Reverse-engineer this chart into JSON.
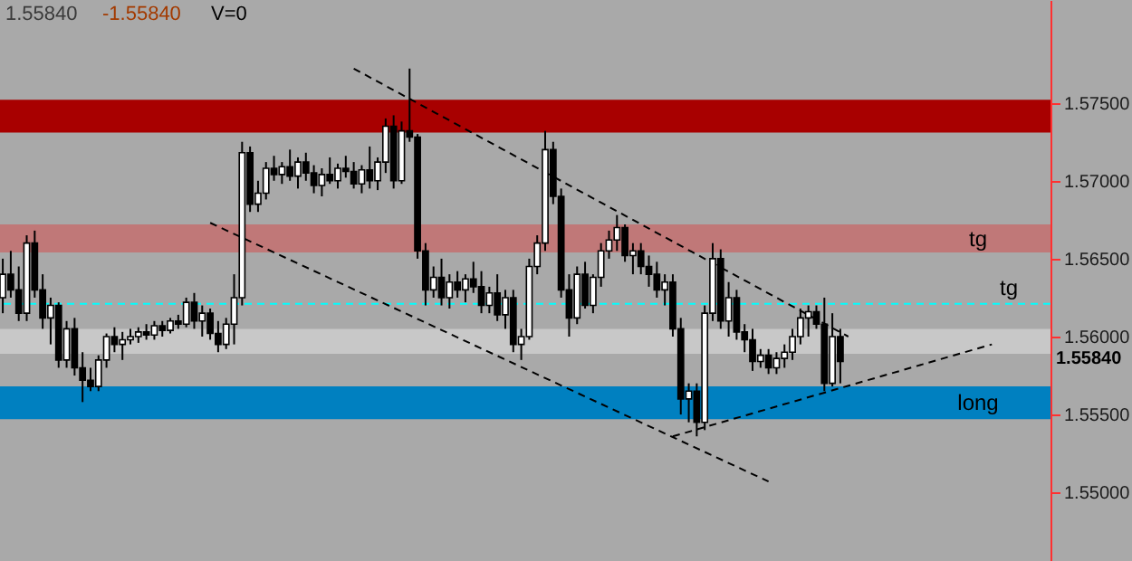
{
  "chart_data": {
    "type": "candlestick",
    "categories": [
      null,
      null,
      null,
      null,
      null,
      null,
      null,
      null,
      null,
      null,
      null,
      null,
      null,
      null,
      null,
      null,
      null,
      null,
      null,
      null,
      null,
      null,
      null,
      null,
      null,
      null,
      null,
      null,
      null,
      null,
      null,
      null,
      null,
      null,
      null,
      null,
      null,
      null,
      null,
      null,
      null,
      null,
      null,
      null,
      null,
      null,
      null,
      null,
      null,
      null,
      null,
      null,
      null,
      null,
      null,
      null,
      null,
      null,
      null,
      null,
      null,
      null,
      null,
      null,
      null,
      null,
      null,
      null,
      null,
      null,
      null,
      null,
      null,
      null,
      null,
      null,
      null,
      null,
      null,
      null,
      null,
      null,
      null,
      null,
      null,
      null,
      null,
      null,
      null,
      null,
      null,
      null,
      null,
      null,
      null,
      null,
      null,
      null,
      null,
      null,
      null,
      null,
      null,
      null,
      null,
      null,
      null,
      null,
      null,
      null,
      null,
      null,
      null,
      null,
      null,
      null,
      null,
      null,
      null,
      null,
      null,
      null,
      null,
      null,
      null,
      null,
      null,
      null,
      null,
      null,
      null,
      null
    ],
    "ohlc": [
      [
        1.5625,
        1.565,
        1.5615,
        1.564
      ],
      [
        1.564,
        1.5655,
        1.5625,
        1.563
      ],
      [
        1.563,
        1.5645,
        1.561,
        1.5615
      ],
      [
        1.5615,
        1.5665,
        1.561,
        1.566
      ],
      [
        1.566,
        1.5668,
        1.5625,
        1.563
      ],
      [
        1.563,
        1.564,
        1.5605,
        1.5612
      ],
      [
        1.5612,
        1.5625,
        1.5595,
        1.562
      ],
      [
        1.562,
        1.5622,
        1.558,
        1.5585
      ],
      [
        1.5585,
        1.561,
        1.558,
        1.5605
      ],
      [
        1.5605,
        1.5612,
        1.5575,
        1.558
      ],
      [
        1.558,
        1.559,
        1.5558,
        1.5572
      ],
      [
        1.5572,
        1.558,
        1.5565,
        1.5568
      ],
      [
        1.5568,
        1.5588,
        1.5565,
        1.5585
      ],
      [
        1.5585,
        1.5602,
        1.558,
        1.56
      ],
      [
        1.56,
        1.5606,
        1.559,
        1.5595
      ],
      [
        1.5595,
        1.5603,
        1.5585,
        1.5598
      ],
      [
        1.5598,
        1.5605,
        1.5595,
        1.56
      ],
      [
        1.56,
        1.5606,
        1.5596,
        1.5603
      ],
      [
        1.5603,
        1.5608,
        1.5598,
        1.5601
      ],
      [
        1.5601,
        1.561,
        1.5598,
        1.5607
      ],
      [
        1.5607,
        1.561,
        1.56,
        1.5604
      ],
      [
        1.5604,
        1.5612,
        1.5602,
        1.561
      ],
      [
        1.561,
        1.5614,
        1.5605,
        1.5608
      ],
      [
        1.5608,
        1.5625,
        1.5606,
        1.5622
      ],
      [
        1.5622,
        1.5628,
        1.5605,
        1.561
      ],
      [
        1.561,
        1.562,
        1.56,
        1.5615
      ],
      [
        1.5615,
        1.5618,
        1.5598,
        1.5602
      ],
      [
        1.5602,
        1.561,
        1.559,
        1.5595
      ],
      [
        1.5595,
        1.5612,
        1.5592,
        1.5608
      ],
      [
        1.5608,
        1.564,
        1.5595,
        1.5625
      ],
      [
        1.5625,
        1.5725,
        1.562,
        1.5718
      ],
      [
        1.5718,
        1.5722,
        1.568,
        1.5685
      ],
      [
        1.5685,
        1.57,
        1.568,
        1.5692
      ],
      [
        1.5692,
        1.5712,
        1.5688,
        1.5708
      ],
      [
        1.5708,
        1.5716,
        1.57,
        1.5704
      ],
      [
        1.5704,
        1.5712,
        1.5698,
        1.5709
      ],
      [
        1.5709,
        1.572,
        1.57,
        1.5703
      ],
      [
        1.5703,
        1.5715,
        1.5695,
        1.5712
      ],
      [
        1.5712,
        1.5718,
        1.57,
        1.5705
      ],
      [
        1.5705,
        1.571,
        1.5692,
        1.5697
      ],
      [
        1.5697,
        1.5708,
        1.569,
        1.5704
      ],
      [
        1.5704,
        1.5715,
        1.5698,
        1.57
      ],
      [
        1.57,
        1.5711,
        1.5695,
        1.5708
      ],
      [
        1.5708,
        1.5716,
        1.5702,
        1.5706
      ],
      [
        1.5706,
        1.5712,
        1.5695,
        1.5698
      ],
      [
        1.5698,
        1.571,
        1.5692,
        1.5707
      ],
      [
        1.5707,
        1.5722,
        1.5695,
        1.57
      ],
      [
        1.57,
        1.5715,
        1.5694,
        1.5712
      ],
      [
        1.5712,
        1.574,
        1.5705,
        1.5735
      ],
      [
        1.5735,
        1.5742,
        1.5695,
        1.57
      ],
      [
        1.57,
        1.5738,
        1.5698,
        1.5732
      ],
      [
        1.5732,
        1.5772,
        1.5725,
        1.5728
      ],
      [
        1.5728,
        1.573,
        1.565,
        1.5655
      ],
      [
        1.5655,
        1.566,
        1.562,
        1.563
      ],
      [
        1.563,
        1.5645,
        1.5625,
        1.5638
      ],
      [
        1.5638,
        1.565,
        1.562,
        1.5625
      ],
      [
        1.5625,
        1.564,
        1.5618,
        1.5635
      ],
      [
        1.5635,
        1.5642,
        1.5625,
        1.563
      ],
      [
        1.563,
        1.564,
        1.5622,
        1.5637
      ],
      [
        1.5637,
        1.5648,
        1.5628,
        1.5632
      ],
      [
        1.5632,
        1.5642,
        1.5615,
        1.562
      ],
      [
        1.562,
        1.5632,
        1.5615,
        1.5628
      ],
      [
        1.5628,
        1.564,
        1.561,
        1.5614
      ],
      [
        1.5614,
        1.563,
        1.5605,
        1.5625
      ],
      [
        1.5625,
        1.563,
        1.559,
        1.5595
      ],
      [
        1.5595,
        1.5605,
        1.5585,
        1.56
      ],
      [
        1.56,
        1.565,
        1.5598,
        1.5645
      ],
      [
        1.5645,
        1.5665,
        1.564,
        1.566
      ],
      [
        1.566,
        1.5732,
        1.5655,
        1.572
      ],
      [
        1.572,
        1.5725,
        1.5685,
        1.569
      ],
      [
        1.569,
        1.5695,
        1.5625,
        1.563
      ],
      [
        1.563,
        1.564,
        1.56,
        1.5612
      ],
      [
        1.5612,
        1.5645,
        1.5608,
        1.564
      ],
      [
        1.564,
        1.5648,
        1.5618,
        1.562
      ],
      [
        1.562,
        1.564,
        1.5615,
        1.5638
      ],
      [
        1.5638,
        1.566,
        1.5632,
        1.5655
      ],
      [
        1.5655,
        1.5668,
        1.565,
        1.5662
      ],
      [
        1.5662,
        1.5678,
        1.5655,
        1.567
      ],
      [
        1.567,
        1.5672,
        1.5648,
        1.5652
      ],
      [
        1.5652,
        1.566,
        1.564,
        1.5655
      ],
      [
        1.5655,
        1.566,
        1.564,
        1.5645
      ],
      [
        1.5645,
        1.5652,
        1.5632,
        1.564
      ],
      [
        1.564,
        1.5648,
        1.5625,
        1.563
      ],
      [
        1.563,
        1.564,
        1.562,
        1.5635
      ],
      [
        1.5635,
        1.564,
        1.56,
        1.5605
      ],
      [
        1.5605,
        1.5612,
        1.555,
        1.556
      ],
      [
        1.556,
        1.557,
        1.5545,
        1.5565
      ],
      [
        1.5565,
        1.557,
        1.5536,
        1.5545
      ],
      [
        1.5545,
        1.562,
        1.554,
        1.5615
      ],
      [
        1.5615,
        1.566,
        1.561,
        1.565
      ],
      [
        1.565,
        1.5656,
        1.5605,
        1.561
      ],
      [
        1.561,
        1.5635,
        1.56,
        1.5625
      ],
      [
        1.5625,
        1.563,
        1.5598,
        1.5603
      ],
      [
        1.5603,
        1.5608,
        1.559,
        1.5598
      ],
      [
        1.5598,
        1.5605,
        1.5578,
        1.5584
      ],
      [
        1.5584,
        1.5592,
        1.558,
        1.5588
      ],
      [
        1.5588,
        1.5592,
        1.5576,
        1.558
      ],
      [
        1.558,
        1.559,
        1.5576,
        1.5586
      ],
      [
        1.5586,
        1.5595,
        1.558,
        1.559
      ],
      [
        1.559,
        1.5605,
        1.5585,
        1.56
      ],
      [
        1.56,
        1.5618,
        1.5595,
        1.5612
      ],
      [
        1.5612,
        1.562,
        1.56,
        1.5616
      ],
      [
        1.5616,
        1.562,
        1.5605,
        1.5608
      ],
      [
        1.5608,
        1.5625,
        1.5565,
        1.557
      ],
      [
        1.557,
        1.5615,
        1.5568,
        1.56
      ],
      [
        1.56,
        1.5605,
        1.557,
        1.5584
      ],
      null,
      null,
      null,
      null,
      null,
      null,
      null,
      null,
      null,
      null,
      null,
      null,
      null,
      null,
      null,
      null,
      null,
      null,
      null,
      null,
      null,
      null,
      null,
      null,
      null,
      null
    ],
    "series": [
      {
        "type": "line",
        "color": "#000000",
        "line_style": "dashed",
        "values": [
          null,
          null,
          null,
          null,
          null,
          null,
          null,
          null,
          null,
          null,
          null,
          null,
          null,
          null,
          null,
          null,
          null,
          null,
          null,
          null,
          null,
          null,
          null,
          null,
          null,
          null,
          null,
          null,
          null,
          null,
          null,
          null,
          null,
          null,
          null,
          null,
          null,
          null,
          null,
          null,
          null,
          null,
          null,
          null,
          1.5772,
          null,
          null,
          null,
          null,
          null,
          null,
          null,
          null,
          null,
          null,
          null,
          null,
          null,
          null,
          null,
          null,
          null,
          null,
          null,
          null,
          null,
          null,
          null,
          null,
          null,
          null,
          null,
          null,
          null,
          null,
          null,
          null,
          null,
          null,
          null,
          null,
          null,
          null,
          null,
          null,
          null,
          null,
          null,
          null,
          null,
          null,
          null,
          null,
          null,
          null,
          null,
          null,
          null,
          null,
          null,
          null,
          null,
          null,
          null,
          null,
          null,
          1.56,
          null,
          null,
          null,
          null,
          null,
          null,
          null,
          null,
          null,
          null,
          null,
          null,
          null,
          null,
          null,
          null,
          null,
          null,
          null,
          null,
          null,
          null,
          null,
          null,
          null
        ]
      },
      {
        "type": "line",
        "color": "#000000",
        "line_style": "dashed",
        "values": [
          null,
          null,
          null,
          null,
          null,
          null,
          null,
          null,
          null,
          null,
          null,
          null,
          null,
          null,
          null,
          null,
          null,
          null,
          null,
          null,
          null,
          null,
          null,
          null,
          null,
          null,
          1.5673,
          null,
          null,
          null,
          null,
          null,
          null,
          null,
          null,
          null,
          null,
          null,
          null,
          null,
          null,
          null,
          null,
          null,
          null,
          null,
          null,
          null,
          null,
          null,
          null,
          null,
          null,
          null,
          null,
          null,
          null,
          null,
          null,
          null,
          null,
          null,
          null,
          null,
          null,
          null,
          null,
          null,
          null,
          null,
          null,
          null,
          null,
          null,
          null,
          null,
          null,
          null,
          null,
          null,
          null,
          null,
          null,
          null,
          null,
          null,
          null,
          null,
          null,
          null,
          null,
          null,
          null,
          null,
          null,
          null,
          1.5507,
          null,
          null,
          null,
          null,
          null,
          null,
          null,
          null,
          null,
          null,
          null,
          null,
          null,
          null,
          null,
          null,
          null,
          null,
          null,
          null,
          null,
          null,
          null,
          null,
          null,
          null,
          null,
          null,
          null,
          null,
          null,
          null,
          null,
          null,
          null
        ]
      },
      {
        "type": "line",
        "color": "#000000",
        "line_style": "dashed",
        "values": [
          null,
          null,
          null,
          null,
          null,
          null,
          null,
          null,
          null,
          null,
          null,
          null,
          null,
          null,
          null,
          null,
          null,
          null,
          null,
          null,
          null,
          null,
          null,
          null,
          null,
          null,
          null,
          null,
          null,
          null,
          null,
          null,
          null,
          null,
          null,
          null,
          null,
          null,
          null,
          null,
          null,
          null,
          null,
          null,
          null,
          null,
          null,
          null,
          null,
          null,
          null,
          null,
          null,
          null,
          null,
          null,
          null,
          null,
          null,
          null,
          null,
          null,
          null,
          null,
          null,
          null,
          null,
          null,
          null,
          null,
          null,
          null,
          null,
          null,
          null,
          null,
          null,
          null,
          null,
          null,
          null,
          null,
          null,
          null,
          1.5536,
          null,
          null,
          null,
          null,
          null,
          null,
          null,
          null,
          null,
          null,
          null,
          null,
          null,
          null,
          null,
          null,
          null,
          null,
          null,
          null,
          null,
          null,
          null,
          null,
          null,
          null,
          null,
          null,
          null,
          null,
          null,
          null,
          null,
          null,
          null,
          null,
          null,
          null,
          null,
          1.5595,
          null,
          null,
          null,
          null,
          null,
          null,
          null
        ]
      }
    ],
    "ylim": [
      1.5456,
      1.5816
    ],
    "yticks": [
      {
        "value": 1.55,
        "label": "1.55000"
      },
      {
        "value": 1.555,
        "label": "1.55500"
      },
      {
        "value": 1.56,
        "label": "1.56000"
      },
      {
        "value": 1.565,
        "label": "1.56500"
      },
      {
        "value": 1.57,
        "label": "1.57000"
      },
      {
        "value": 1.575,
        "label": "1.57500"
      }
    ],
    "tick_labels": "y",
    "bands": [
      {
        "axis": "y",
        "from": 1.5731,
        "to": 1.5752,
        "color": "#a80000"
      },
      {
        "axis": "y",
        "from": 1.5654,
        "to": 1.5672,
        "color": "#c07878",
        "label": "tg"
      },
      {
        "axis": "y",
        "from": 1.5589,
        "to": 1.5605,
        "color": "#c8c8c8"
      },
      {
        "axis": "y",
        "from": 1.5547,
        "to": 1.5568,
        "color": "#0080c0",
        "label": "long"
      }
    ],
    "ref_lines": [
      {
        "axis": "y",
        "value": 1.5621,
        "label": "tg",
        "color": "#00ffff",
        "line_style": "dashed"
      }
    ],
    "annotations": [
      "1.55840",
      "-1.55840",
      "V=0",
      "1.55840"
    ]
  }
}
